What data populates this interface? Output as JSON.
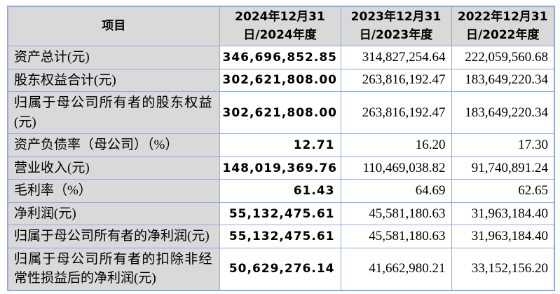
{
  "colors": {
    "table_border": "#8eaadb",
    "header_background": "#d9d9d9",
    "label_column_background": "#d9d9d9",
    "value_cell_background": "#ffffff",
    "text": "#000000"
  },
  "table": {
    "columns": [
      "项目",
      "2024年12月31日/2024年度",
      "2023年12月31日/2023年度",
      "2022年12月31日/2022年度"
    ],
    "rows": [
      {
        "label": "资产总计(元)",
        "values": [
          "346,696,852.85",
          "314,827,254.64",
          "222,059,560.68"
        ]
      },
      {
        "label": "股东权益合计(元)",
        "values": [
          "302,621,808.00",
          "263,816,192.47",
          "183,649,220.34"
        ]
      },
      {
        "label": "归属于母公司所有者的股东权益(元)",
        "values": [
          "302,621,808.00",
          "263,816,192.47",
          "183,649,220.34"
        ]
      },
      {
        "label": "资产负债率（母公司）（%）",
        "values": [
          "12.71",
          "16.20",
          "17.30"
        ]
      },
      {
        "label": "营业收入(元)",
        "values": [
          "148,019,369.76",
          "110,469,038.82",
          "91,740,891.24"
        ]
      },
      {
        "label": "毛利率（%）",
        "values": [
          "61.43",
          "64.69",
          "62.65"
        ]
      },
      {
        "label": "净利润(元)",
        "values": [
          "55,132,475.61",
          "45,581,180.63",
          "31,963,184.40"
        ]
      },
      {
        "label": "归属于母公司所有者的净利润(元)",
        "values": [
          "55,132,475.61",
          "45,581,180.63",
          "31,963,184.40"
        ]
      },
      {
        "label": "归属于母公司所有者的扣除非经常性损益后的净利润(元)",
        "values": [
          "50,629,276.14",
          "41,662,980.21",
          "33,152,156.20"
        ]
      }
    ]
  }
}
